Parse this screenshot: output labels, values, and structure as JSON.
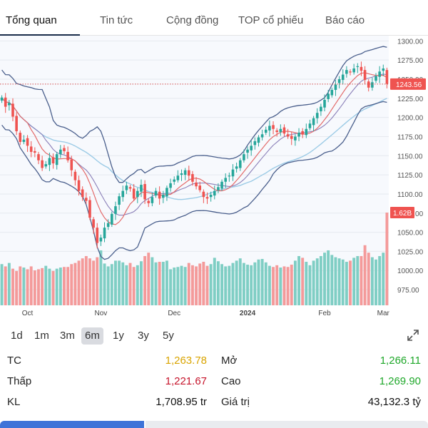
{
  "tabs": [
    {
      "label": "Tổng quan",
      "active": true
    },
    {
      "label": "Tin tức",
      "active": false
    },
    {
      "label": "Cộng đồng",
      "active": false
    },
    {
      "label": "TOP cổ phiếu",
      "active": false
    },
    {
      "label": "Báo cáo",
      "active": false
    }
  ],
  "chart_data": {
    "type": "candlestick",
    "ylim": [
      962,
      1305
    ],
    "y_ticks": [
      "1300.00",
      "1275.00",
      "1250.00",
      "1225.00",
      "1200.00",
      "1175.00",
      "1150.00",
      "1125.00",
      "1100.00",
      "1075.00",
      "1050.00",
      "1025.00",
      "1000.00",
      "975.00"
    ],
    "x_labels": [
      "Oct",
      "Nov",
      "Dec",
      "2024",
      "Feb",
      "Mar"
    ],
    "x_label_positions": [
      7,
      27,
      47,
      67,
      88,
      104
    ],
    "last_price_label": "1243.56",
    "volume_label": "1.62B",
    "colors": {
      "up": "#26a69a",
      "down": "#ef5350",
      "vol_up": "#7fcec4",
      "vol_down": "#f49a9a",
      "bb": "#4a5f8c",
      "ma_red": "#e36a6a",
      "ma_blue": "#9ccbe6"
    },
    "closes": [
      1226,
      1214,
      1219,
      1201,
      1182,
      1168,
      1171,
      1163,
      1155,
      1154,
      1144,
      1134,
      1139,
      1147,
      1140,
      1152,
      1158,
      1156,
      1144,
      1131,
      1118,
      1104,
      1096,
      1091,
      1069,
      1056,
      1036,
      1043,
      1056,
      1062,
      1074,
      1084,
      1097,
      1104,
      1111,
      1107,
      1094,
      1104,
      1112,
      1093,
      1088,
      1096,
      1104,
      1094,
      1099,
      1108,
      1114,
      1119,
      1124,
      1127,
      1131,
      1124,
      1116,
      1110,
      1105,
      1096,
      1094,
      1099,
      1104,
      1109,
      1116,
      1121,
      1124,
      1132,
      1136,
      1144,
      1152,
      1158,
      1163,
      1169,
      1174,
      1178,
      1184,
      1189,
      1185,
      1181,
      1185,
      1179,
      1175,
      1172,
      1175,
      1180,
      1178,
      1185,
      1192,
      1199,
      1206,
      1214,
      1223,
      1231,
      1236,
      1243,
      1250,
      1256,
      1262,
      1259,
      1264,
      1267,
      1261,
      1249,
      1239,
      1246,
      1254,
      1260,
      1264,
      1244
    ],
    "volumes": [
      0.72,
      0.68,
      0.74,
      0.64,
      0.6,
      0.68,
      0.66,
      0.63,
      0.68,
      0.61,
      0.63,
      0.65,
      0.69,
      0.64,
      0.6,
      0.64,
      0.66,
      0.67,
      0.67,
      0.72,
      0.74,
      0.78,
      0.82,
      0.86,
      0.82,
      0.78,
      0.84,
      0.96,
      0.73,
      0.68,
      0.72,
      0.78,
      0.78,
      0.75,
      0.7,
      0.74,
      0.67,
      0.7,
      0.77,
      0.86,
      0.92,
      0.84,
      0.75,
      0.76,
      0.76,
      0.78,
      0.63,
      0.66,
      0.67,
      0.69,
      0.67,
      0.74,
      0.7,
      0.68,
      0.73,
      0.76,
      0.69,
      0.72,
      0.83,
      0.77,
      0.72,
      0.68,
      0.69,
      0.74,
      0.78,
      0.82,
      0.74,
      0.71,
      0.7,
      0.75,
      0.8,
      0.81,
      0.75,
      0.69,
      0.67,
      0.7,
      0.66,
      0.68,
      0.67,
      0.71,
      0.78,
      0.86,
      0.83,
      0.76,
      0.7,
      0.78,
      0.82,
      0.86,
      0.92,
      0.96,
      0.88,
      0.84,
      0.82,
      0.8,
      0.76,
      0.78,
      0.83,
      0.86,
      0.86,
      1.05,
      0.92,
      0.84,
      0.8,
      0.86,
      0.92,
      1.62
    ]
  },
  "ranges": [
    {
      "label": "1d",
      "active": false
    },
    {
      "label": "1m",
      "active": false
    },
    {
      "label": "3m",
      "active": false
    },
    {
      "label": "6m",
      "active": true
    },
    {
      "label": "1y",
      "active": false
    },
    {
      "label": "3y",
      "active": false
    },
    {
      "label": "5y",
      "active": false
    }
  ],
  "stats": {
    "tc_label": "TC",
    "tc_value": "1,263.78",
    "open_label": "Mở",
    "open_value": "1,266.11",
    "low_label": "Thấp",
    "low_value": "1,221.67",
    "high_label": "Cao",
    "high_value": "1,269.90",
    "vol_label": "KL",
    "vol_value": "1,708.95 tr",
    "amount_label": "Giá trị",
    "amount_value": "43,132.3 tỷ"
  }
}
